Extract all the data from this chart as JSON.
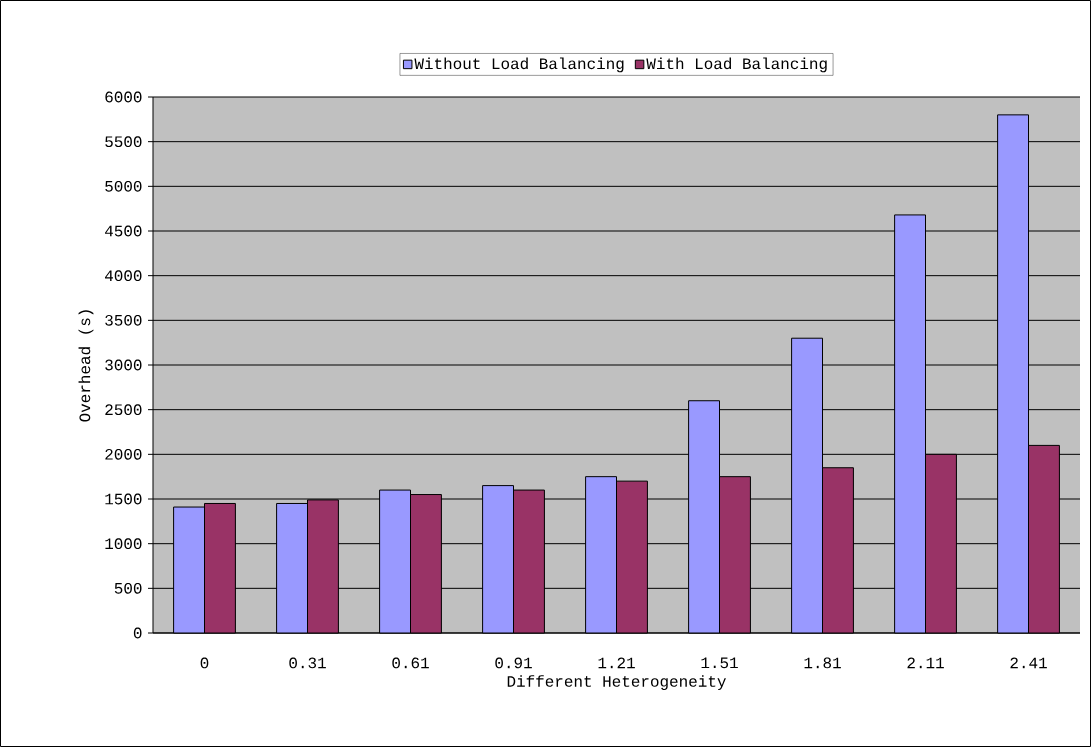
{
  "chart_data": {
    "type": "bar",
    "xlabel": "Different Heterogeneity",
    "ylabel": "Overhead (s)",
    "categories": [
      "0",
      "0.31",
      "0.61",
      "0.91",
      "1.21",
      "1.51",
      "1.81",
      "2.11",
      "2.41"
    ],
    "series": [
      {
        "name": "Without Load Balancing",
        "color": "#9999ff",
        "values": [
          1410,
          1450,
          1600,
          1650,
          1750,
          2600,
          3300,
          4680,
          5800
        ]
      },
      {
        "name": "With Load Balancing",
        "color": "#993366",
        "values": [
          1450,
          1490,
          1550,
          1600,
          1700,
          1750,
          1850,
          2000,
          2100
        ]
      }
    ],
    "ylim": [
      0,
      6000
    ],
    "yticks": [
      0,
      500,
      1000,
      1500,
      2000,
      2500,
      3000,
      3500,
      4000,
      4500,
      5000,
      5500,
      6000
    ],
    "grid": "y",
    "legend": "top"
  }
}
